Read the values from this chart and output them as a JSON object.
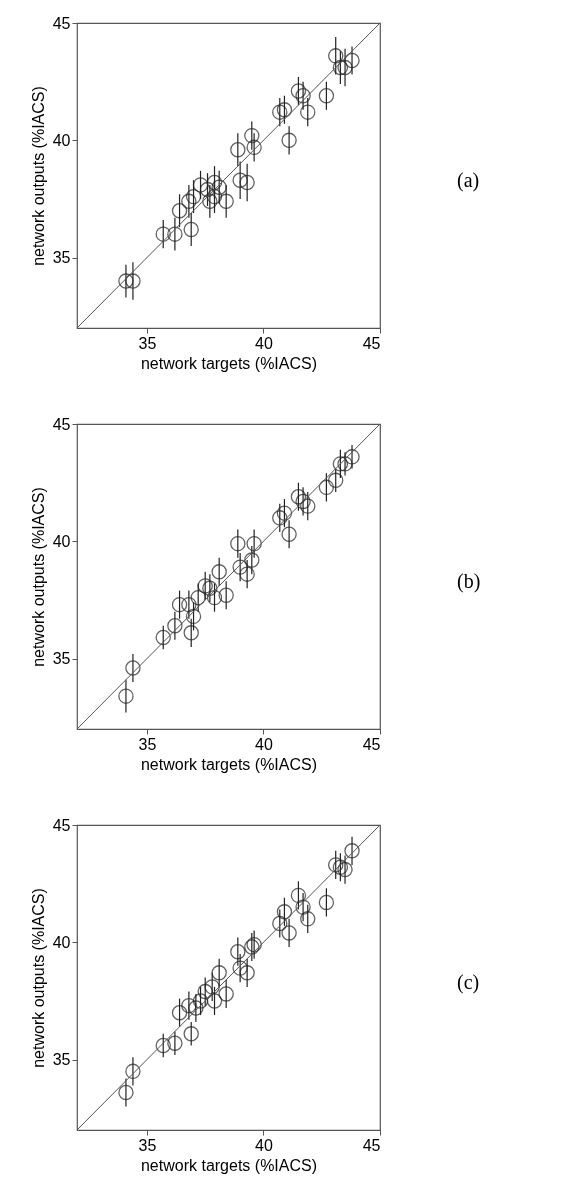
{
  "chart_data": [
    {
      "type": "scatter",
      "annotations": [
        "(a)"
      ],
      "xlabel": "network targets (%IACS)",
      "ylabel": "network outputs (%IACS)",
      "xlim": [
        32,
        45
      ],
      "ylim": [
        32,
        45
      ],
      "xticks": [
        35,
        40,
        45
      ],
      "yticks": [
        35,
        40,
        45
      ],
      "grid": false,
      "marker": "circle",
      "series": [
        {
          "color": "#222222",
          "x": [
            34.1,
            34.4,
            35.7,
            36.2,
            36.4,
            36.9,
            36.8,
            37.0,
            37.3,
            37.6,
            37.7,
            37.9,
            38.1,
            37.9,
            38.4,
            38.9,
            39.0,
            39.3,
            39.5,
            39.6,
            40.7,
            40.9,
            41.1,
            41.5,
            41.7,
            41.9,
            42.7,
            43.1,
            43.3,
            43.5,
            43.8
          ],
          "values": [
            34.0,
            34.0,
            36.0,
            36.0,
            37.0,
            36.2,
            37.4,
            37.6,
            38.1,
            37.9,
            37.4,
            38.2,
            38.0,
            37.6,
            37.4,
            39.6,
            38.3,
            38.2,
            40.2,
            39.7,
            41.2,
            41.3,
            40.0,
            42.1,
            41.9,
            41.2,
            41.9,
            43.6,
            43.1,
            43.1,
            43.4
          ],
          "errors": [
            0.7,
            0.8,
            0.6,
            0.7,
            0.7,
            0.7,
            0.7,
            0.7,
            0.6,
            0.7,
            0.7,
            0.7,
            0.7,
            0.7,
            0.7,
            0.7,
            0.8,
            0.8,
            0.6,
            0.6,
            0.6,
            0.6,
            0.6,
            0.6,
            0.6,
            0.6,
            0.6,
            0.8,
            0.7,
            0.8,
            0.6
          ]
        },
        {
          "type": "line",
          "color": "#555555",
          "marker": "none",
          "x": [
            32,
            45
          ],
          "values": [
            32,
            45
          ]
        }
      ]
    },
    {
      "type": "scatter",
      "annotations": [
        "(b)"
      ],
      "xlabel": "network targets (%IACS)",
      "ylabel": "network outputs (%IACS)",
      "xlim": [
        32,
        45
      ],
      "ylim": [
        32,
        45
      ],
      "xticks": [
        35,
        40,
        45
      ],
      "yticks": [
        35,
        40,
        45
      ],
      "grid": false,
      "marker": "circle",
      "series": [
        {
          "color": "#222222",
          "x": [
            34.1,
            34.4,
            35.7,
            36.2,
            36.4,
            36.8,
            36.9,
            37.0,
            37.2,
            37.5,
            37.7,
            37.9,
            38.1,
            38.4,
            38.9,
            39.0,
            39.3,
            39.5,
            39.6,
            40.7,
            40.9,
            41.1,
            41.5,
            41.7,
            41.9,
            42.7,
            43.1,
            43.3,
            43.5,
            43.8
          ],
          "values": [
            33.4,
            34.6,
            35.9,
            36.4,
            37.3,
            37.3,
            36.1,
            36.8,
            37.6,
            38.1,
            38.0,
            37.6,
            38.7,
            37.7,
            39.9,
            38.9,
            38.6,
            39.2,
            39.9,
            41.0,
            41.2,
            40.3,
            41.9,
            41.7,
            41.5,
            42.3,
            42.6,
            43.3,
            43.3,
            43.6
          ],
          "errors": [
            0.7,
            0.6,
            0.5,
            0.6,
            0.6,
            0.6,
            0.6,
            0.6,
            0.6,
            0.6,
            0.6,
            0.6,
            0.6,
            0.6,
            0.6,
            0.6,
            0.6,
            0.6,
            0.6,
            0.6,
            0.6,
            0.6,
            0.6,
            0.6,
            0.6,
            0.6,
            0.5,
            0.6,
            0.5,
            0.5
          ]
        },
        {
          "type": "line",
          "color": "#555555",
          "marker": "none",
          "x": [
            32,
            45
          ],
          "values": [
            32,
            45
          ]
        }
      ]
    },
    {
      "type": "scatter",
      "annotations": [
        "(c)"
      ],
      "xlabel": "network targets (%IACS)",
      "ylabel": "network outputs (%IACS)",
      "xlim": [
        32,
        45
      ],
      "ylim": [
        32,
        45
      ],
      "xticks": [
        35,
        40,
        45
      ],
      "yticks": [
        35,
        40,
        45
      ],
      "grid": false,
      "marker": "circle",
      "series": [
        {
          "color": "#222222",
          "x": [
            34.1,
            34.4,
            35.7,
            36.2,
            36.4,
            36.8,
            36.9,
            37.1,
            37.3,
            37.5,
            37.8,
            37.9,
            38.1,
            38.4,
            38.9,
            39.0,
            39.3,
            39.5,
            39.6,
            40.7,
            40.9,
            41.1,
            41.5,
            41.7,
            41.9,
            42.7,
            43.1,
            43.3,
            43.5,
            43.8
          ],
          "values": [
            33.6,
            34.5,
            35.6,
            35.7,
            37.0,
            37.3,
            36.1,
            37.2,
            37.5,
            37.9,
            38.1,
            37.5,
            38.7,
            37.8,
            39.6,
            38.9,
            38.7,
            39.8,
            39.9,
            40.8,
            41.3,
            40.4,
            42.0,
            41.5,
            41.0,
            41.7,
            43.3,
            43.2,
            43.1,
            43.9
          ],
          "errors": [
            0.6,
            0.6,
            0.5,
            0.5,
            0.6,
            0.6,
            0.5,
            0.6,
            0.6,
            0.6,
            0.6,
            0.6,
            0.6,
            0.6,
            0.6,
            0.6,
            0.6,
            0.6,
            0.6,
            0.6,
            0.6,
            0.6,
            0.6,
            0.6,
            0.6,
            0.6,
            0.6,
            0.6,
            0.6,
            0.6
          ]
        },
        {
          "type": "line",
          "color": "#555555",
          "marker": "none",
          "x": [
            32,
            45
          ],
          "values": [
            32,
            45
          ]
        }
      ]
    }
  ]
}
